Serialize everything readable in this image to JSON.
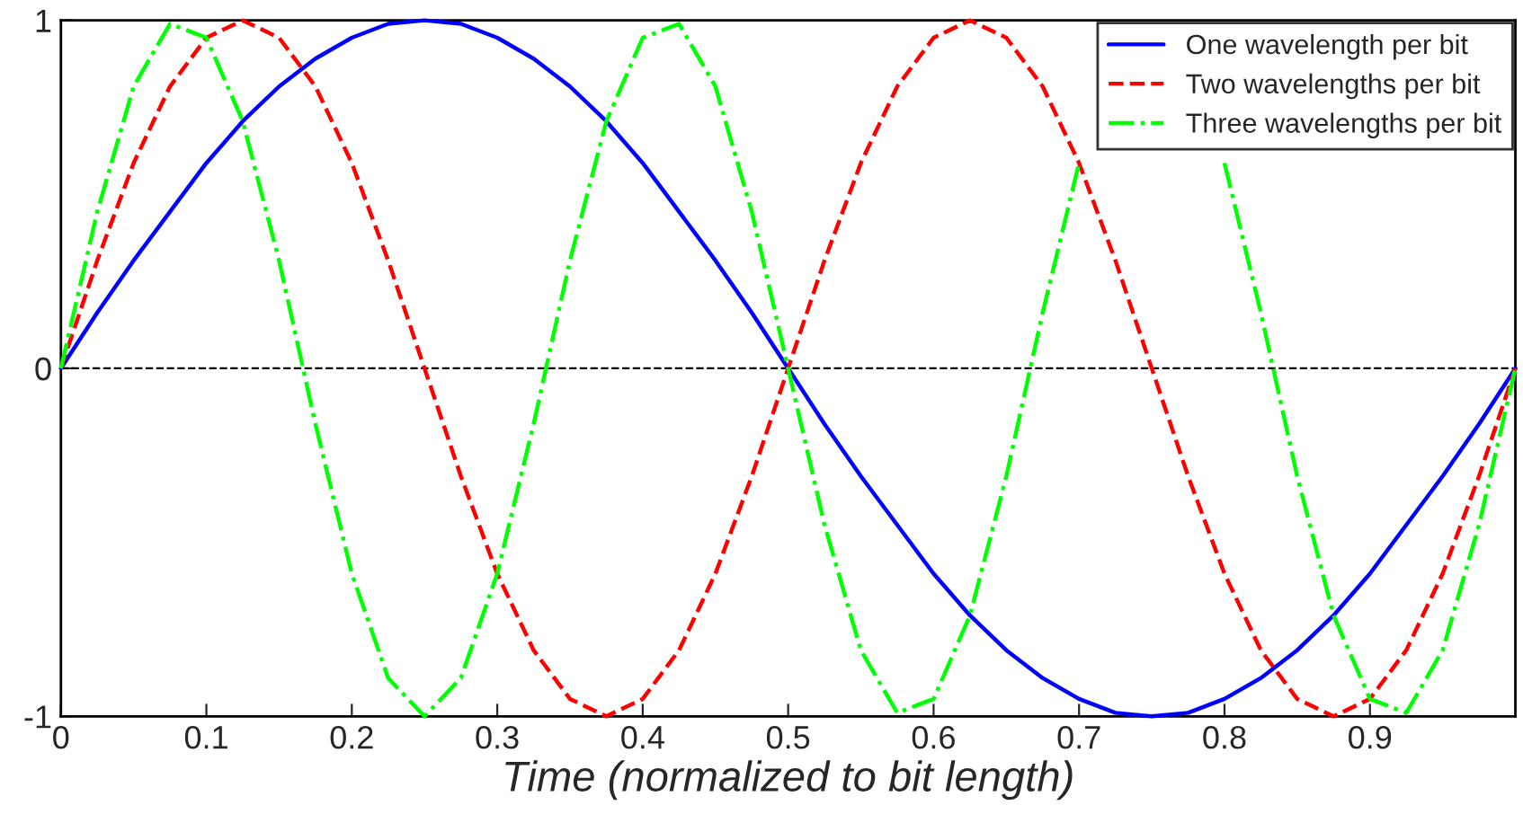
{
  "chart_data": {
    "type": "line",
    "xlabel": "Time (normalized to bit length)",
    "x": [
      0,
      0.025,
      0.05,
      0.075,
      0.1,
      0.125,
      0.15,
      0.175,
      0.2,
      0.225,
      0.25,
      0.275,
      0.3,
      0.325,
      0.35,
      0.375,
      0.4,
      0.425,
      0.45,
      0.475,
      0.5,
      0.525,
      0.55,
      0.575,
      0.6,
      0.625,
      0.65,
      0.675,
      0.7,
      0.725,
      0.75,
      0.775,
      0.8,
      0.825,
      0.85,
      0.875,
      0.9,
      0.925,
      0.95,
      0.975,
      1
    ],
    "series": [
      {
        "name": "One wavelength per bit",
        "color": "#0000ff",
        "line_style": "solid",
        "values": [
          0,
          0.16,
          0.31,
          0.45,
          0.59,
          0.71,
          0.81,
          0.89,
          0.95,
          0.99,
          1,
          0.99,
          0.95,
          0.89,
          0.81,
          0.71,
          0.59,
          0.45,
          0.31,
          0.16,
          0,
          -0.16,
          -0.31,
          -0.45,
          -0.59,
          -0.71,
          -0.81,
          -0.89,
          -0.95,
          -0.99,
          -1,
          -0.99,
          -0.95,
          -0.89,
          -0.81,
          -0.71,
          -0.59,
          -0.45,
          -0.31,
          -0.16,
          0
        ]
      },
      {
        "name": "Two wavelengths per bit",
        "color": "#ff0000",
        "line_style": "dashed",
        "values": [
          0,
          0.31,
          0.59,
          0.81,
          0.95,
          1,
          0.95,
          0.81,
          0.59,
          0.31,
          0,
          -0.31,
          -0.59,
          -0.81,
          -0.95,
          -1,
          -0.95,
          -0.81,
          -0.59,
          -0.31,
          0,
          0.31,
          0.59,
          0.81,
          0.95,
          1,
          0.95,
          0.81,
          0.59,
          0.31,
          0,
          -0.31,
          -0.59,
          -0.81,
          -0.95,
          -1,
          -0.95,
          -0.81,
          -0.59,
          -0.31,
          0
        ]
      },
      {
        "name": "Three wavelengths per bit",
        "color": "#00ff00",
        "line_style": "dashdot",
        "values": [
          0,
          0.45,
          0.81,
          0.99,
          0.95,
          0.71,
          0.31,
          -0.16,
          -0.59,
          -0.89,
          -1,
          -0.89,
          -0.59,
          -0.16,
          0.31,
          0.71,
          0.95,
          0.99,
          0.81,
          0.45,
          0,
          -0.45,
          -0.81,
          -0.99,
          -0.95,
          -0.71,
          -0.31,
          0.16,
          0.59,
          null,
          null,
          null,
          0.59,
          0.16,
          -0.31,
          -0.71,
          -0.95,
          -0.99,
          -0.81,
          -0.45,
          0
        ]
      }
    ],
    "xlim": [
      0,
      1
    ],
    "xticks": [
      0,
      0.1,
      0.2,
      0.3,
      0.4,
      0.5,
      0.6,
      0.7,
      0.8,
      0.9
    ],
    "ylim": [
      -1,
      1
    ],
    "yticks": [
      -1,
      0,
      1
    ],
    "ref_lines": [
      {
        "axis": "y",
        "value": 0,
        "color": "#000000",
        "line_style": "dashed"
      }
    ],
    "grid": false,
    "legend": "top right"
  }
}
